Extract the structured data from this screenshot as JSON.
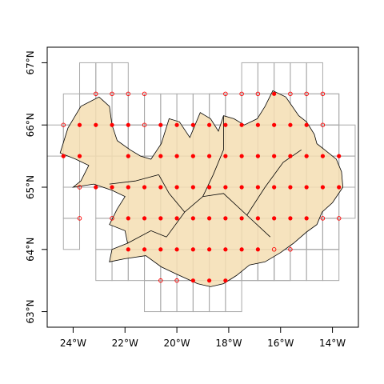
{
  "map": {
    "x_range": [
      -25.0,
      -13.0
    ],
    "y_range": [
      62.75,
      67.25
    ],
    "x_ticks": [
      {
        "value": -24,
        "label": "24°W"
      },
      {
        "value": -22,
        "label": "22°W"
      },
      {
        "value": -20,
        "label": "20°W"
      },
      {
        "value": -18,
        "label": "18°W"
      },
      {
        "value": -16,
        "label": "16°W"
      },
      {
        "value": -14,
        "label": "14°W"
      }
    ],
    "y_ticks": [
      {
        "value": 63,
        "label": "63°N"
      },
      {
        "value": 64,
        "label": "64°N"
      },
      {
        "value": 65,
        "label": "65°N"
      },
      {
        "value": 66,
        "label": "66°N"
      },
      {
        "value": 67,
        "label": "67°N"
      }
    ],
    "colors": {
      "land": "#f5deb3",
      "grid": "#a9a9a9",
      "point": "#ff0000",
      "border": "#000000"
    },
    "grid_cell": {
      "dlon": 0.625,
      "dlat": 0.5
    },
    "coast": [
      [
        -22.6,
        63.8
      ],
      [
        -22.0,
        63.85
      ],
      [
        -21.2,
        63.9
      ],
      [
        -20.6,
        63.72
      ],
      [
        -20.0,
        63.6
      ],
      [
        -19.2,
        63.45
      ],
      [
        -18.7,
        63.4
      ],
      [
        -18.2,
        63.45
      ],
      [
        -17.7,
        63.58
      ],
      [
        -17.2,
        63.75
      ],
      [
        -16.6,
        63.8
      ],
      [
        -16.0,
        63.95
      ],
      [
        -15.5,
        64.1
      ],
      [
        -15.0,
        64.28
      ],
      [
        -14.6,
        64.4
      ],
      [
        -14.4,
        64.6
      ],
      [
        -14.0,
        64.75
      ],
      [
        -13.6,
        65.0
      ],
      [
        -13.65,
        65.25
      ],
      [
        -13.85,
        65.45
      ],
      [
        -14.3,
        65.6
      ],
      [
        -14.6,
        65.7
      ],
      [
        -14.7,
        65.85
      ],
      [
        -15.0,
        66.05
      ],
      [
        -15.3,
        66.15
      ],
      [
        -15.8,
        66.45
      ],
      [
        -16.3,
        66.55
      ],
      [
        -16.6,
        66.3
      ],
      [
        -16.9,
        66.1
      ],
      [
        -17.4,
        66.0
      ],
      [
        -17.8,
        66.1
      ],
      [
        -18.2,
        66.15
      ],
      [
        -18.4,
        65.9
      ],
      [
        -18.7,
        66.1
      ],
      [
        -19.1,
        66.2
      ],
      [
        -19.5,
        65.8
      ],
      [
        -19.9,
        66.05
      ],
      [
        -20.3,
        66.1
      ],
      [
        -20.6,
        65.7
      ],
      [
        -21.0,
        65.45
      ],
      [
        -21.4,
        65.5
      ],
      [
        -21.8,
        65.6
      ],
      [
        -22.3,
        65.75
      ],
      [
        -22.5,
        66.0
      ],
      [
        -22.6,
        66.3
      ],
      [
        -23.0,
        66.45
      ],
      [
        -23.7,
        66.3
      ],
      [
        -24.2,
        65.95
      ],
      [
        -24.5,
        65.55
      ],
      [
        -23.9,
        65.45
      ],
      [
        -23.4,
        65.35
      ],
      [
        -23.7,
        65.1
      ],
      [
        -24.0,
        65.0
      ],
      [
        -23.2,
        65.05
      ],
      [
        -22.5,
        64.95
      ],
      [
        -22.0,
        64.85
      ],
      [
        -22.3,
        64.65
      ],
      [
        -22.6,
        64.4
      ],
      [
        -22.0,
        64.3
      ],
      [
        -21.9,
        64.1
      ],
      [
        -22.5,
        64.0
      ],
      [
        -22.6,
        63.8
      ]
    ],
    "borders": [
      [
        [
          -20.4,
          64.2
        ],
        [
          -19.7,
          64.6
        ],
        [
          -19.0,
          64.85
        ],
        [
          -18.2,
          64.9
        ],
        [
          -17.3,
          64.55
        ],
        [
          -16.4,
          64.2
        ]
      ],
      [
        [
          -19.0,
          64.85
        ],
        [
          -18.6,
          65.2
        ],
        [
          -18.2,
          65.6
        ],
        [
          -18.2,
          66.15
        ]
      ],
      [
        [
          -20.7,
          65.2
        ],
        [
          -20.3,
          64.9
        ],
        [
          -19.7,
          64.6
        ]
      ],
      [
        [
          -17.3,
          64.55
        ],
        [
          -16.6,
          65.0
        ],
        [
          -15.9,
          65.4
        ],
        [
          -15.2,
          65.6
        ]
      ],
      [
        [
          -21.9,
          64.1
        ],
        [
          -21.0,
          64.3
        ],
        [
          -20.4,
          64.2
        ]
      ],
      [
        [
          -22.6,
          65.05
        ],
        [
          -21.6,
          65.1
        ],
        [
          -20.7,
          65.2
        ]
      ]
    ],
    "grid_cells": [
      [
        -24.6875,
        65.75
      ],
      [
        -24.0625,
        65.75
      ],
      [
        -24.0625,
        65.25
      ],
      [
        -23.4375,
        65.25
      ],
      [
        -24.0625,
        64.75
      ],
      [
        -24.0625,
        64.25
      ],
      [
        -23.4375,
        66.25
      ],
      [
        -22.8125,
        66.25
      ],
      [
        -22.1875,
        66.25
      ],
      [
        -23.4375,
        66.75
      ],
      [
        -22.8125,
        66.75
      ],
      [
        -22.1875,
        66.75
      ],
      [
        -21.5625,
        65.75
      ],
      [
        -20.9375,
        65.75
      ],
      [
        -20.3125,
        65.75
      ],
      [
        -18.4375,
        66.25
      ],
      [
        -17.1875,
        66.75
      ],
      [
        -16.5625,
        66.75
      ],
      [
        -15.9375,
        66.75
      ],
      [
        -15.3125,
        66.75
      ],
      [
        -14.6875,
        66.75
      ],
      [
        -14.0625,
        66.25
      ],
      [
        -13.4375,
        65.75
      ],
      [
        -13.4375,
        65.25
      ],
      [
        -13.4375,
        64.75
      ],
      [
        -14.0625,
        64.25
      ],
      [
        -14.6875,
        64.25
      ],
      [
        -15.3125,
        64.25
      ],
      [
        -15.9375,
        63.75
      ],
      [
        -16.5625,
        63.75
      ],
      [
        -17.1875,
        63.75
      ],
      [
        -20.9375,
        63.25
      ],
      [
        -20.3125,
        63.25
      ],
      [
        -19.6875,
        63.25
      ],
      [
        -19.0625,
        63.25
      ],
      [
        -18.4375,
        63.25
      ],
      [
        -17.8125,
        63.25
      ],
      [
        -22.8125,
        63.75
      ],
      [
        -22.1875,
        63.75
      ],
      [
        -22.8125,
        64.25
      ],
      [
        -22.1875,
        64.25
      ],
      [
        -22.8125,
        64.75
      ],
      [
        -22.1875,
        64.75
      ],
      [
        -22.8125,
        65.25
      ],
      [
        -22.1875,
        65.25
      ],
      [
        -21.5625,
        65.25
      ],
      [
        -20.9375,
        65.25
      ],
      [
        -23.4375,
        65.75
      ],
      [
        -22.8125,
        65.75
      ],
      [
        -22.1875,
        65.75
      ],
      [
        -24.0625,
        66.25
      ]
    ],
    "grid_interior": {
      "lon_min": -21.875,
      "lon_max": -13.75,
      "lat_min": 63.5,
      "lat_max": 66.5
    },
    "points_filled": [
      [
        -24.375,
        65.5
      ],
      [
        -23.75,
        66.0
      ],
      [
        -23.75,
        65.5
      ],
      [
        -23.125,
        66.0
      ],
      [
        -23.125,
        65.0
      ],
      [
        -22.5,
        65.0
      ],
      [
        -22.5,
        66.0
      ],
      [
        -21.875,
        66.0
      ],
      [
        -21.875,
        65.5
      ],
      [
        -21.875,
        65.0
      ],
      [
        -21.875,
        64.5
      ],
      [
        -21.875,
        64.0
      ],
      [
        -21.25,
        65.0
      ],
      [
        -21.25,
        64.5
      ],
      [
        -21.25,
        64.0
      ],
      [
        -20.625,
        66.0
      ],
      [
        -20.625,
        65.5
      ],
      [
        -20.625,
        65.0
      ],
      [
        -20.625,
        64.5
      ],
      [
        -20.625,
        64.0
      ],
      [
        -20.0,
        66.0
      ],
      [
        -20.0,
        65.5
      ],
      [
        -20.0,
        65.0
      ],
      [
        -20.0,
        64.5
      ],
      [
        -20.0,
        64.0
      ],
      [
        -19.375,
        66.0
      ],
      [
        -19.375,
        65.5
      ],
      [
        -19.375,
        65.0
      ],
      [
        -19.375,
        64.5
      ],
      [
        -19.375,
        64.0
      ],
      [
        -19.375,
        63.5
      ],
      [
        -18.75,
        66.0
      ],
      [
        -18.75,
        65.5
      ],
      [
        -18.75,
        65.0
      ],
      [
        -18.75,
        64.5
      ],
      [
        -18.75,
        64.0
      ],
      [
        -18.75,
        63.5
      ],
      [
        -18.125,
        66.0
      ],
      [
        -18.125,
        65.5
      ],
      [
        -18.125,
        65.0
      ],
      [
        -18.125,
        64.5
      ],
      [
        -18.125,
        64.0
      ],
      [
        -18.125,
        63.5
      ],
      [
        -17.5,
        66.0
      ],
      [
        -17.5,
        65.5
      ],
      [
        -17.5,
        65.0
      ],
      [
        -17.5,
        64.5
      ],
      [
        -17.5,
        64.0
      ],
      [
        -16.875,
        66.0
      ],
      [
        -16.875,
        65.5
      ],
      [
        -16.875,
        65.0
      ],
      [
        -16.875,
        64.5
      ],
      [
        -16.875,
        64.0
      ],
      [
        -16.25,
        66.5
      ],
      [
        -16.25,
        66.0
      ],
      [
        -16.25,
        65.5
      ],
      [
        -16.25,
        65.0
      ],
      [
        -16.25,
        64.5
      ],
      [
        -15.625,
        66.0
      ],
      [
        -15.625,
        65.5
      ],
      [
        -15.625,
        65.0
      ],
      [
        -15.625,
        64.5
      ],
      [
        -15.0,
        66.0
      ],
      [
        -15.0,
        65.5
      ],
      [
        -15.0,
        65.0
      ],
      [
        -15.0,
        64.5
      ],
      [
        -14.375,
        65.5
      ],
      [
        -14.375,
        65.0
      ],
      [
        -13.75,
        65.5
      ],
      [
        -13.75,
        65.0
      ]
    ],
    "points_open": [
      [
        -23.125,
        66.5
      ],
      [
        -22.5,
        66.5
      ],
      [
        -21.875,
        66.5
      ],
      [
        -24.375,
        66.0
      ],
      [
        -23.75,
        65.0
      ],
      [
        -23.75,
        64.5
      ],
      [
        -22.5,
        64.5
      ],
      [
        -21.25,
        66.0
      ],
      [
        -20.625,
        63.5
      ],
      [
        -20.0,
        63.5
      ],
      [
        -18.125,
        66.5
      ],
      [
        -17.5,
        66.5
      ],
      [
        -16.875,
        66.5
      ],
      [
        -15.625,
        66.5
      ],
      [
        -15.0,
        66.5
      ],
      [
        -14.375,
        66.5
      ],
      [
        -14.375,
        66.0
      ],
      [
        -13.75,
        64.5
      ],
      [
        -14.375,
        64.5
      ],
      [
        -16.25,
        64.0
      ],
      [
        -15.625,
        64.0
      ],
      [
        -21.25,
        66.5
      ]
    ]
  }
}
